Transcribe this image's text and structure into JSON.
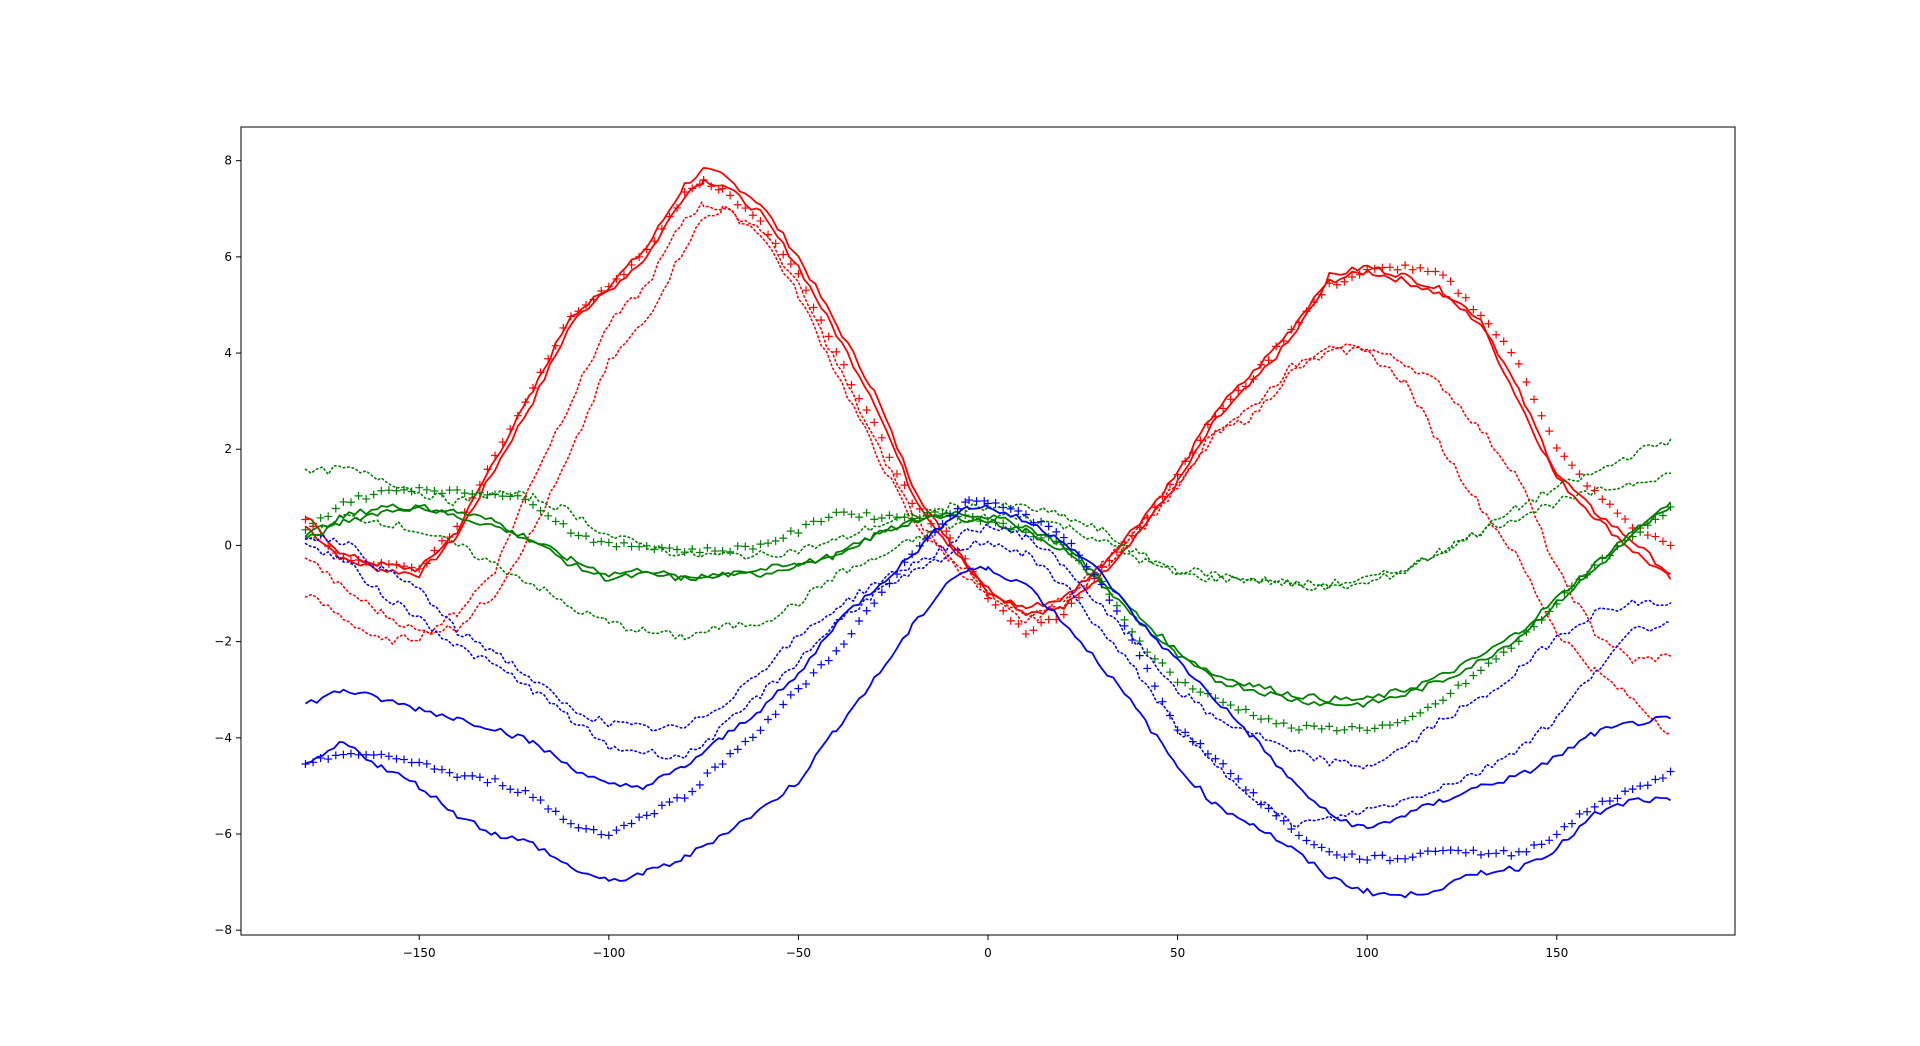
{
  "chart_data": {
    "type": "line",
    "title": "",
    "xlabel": "",
    "ylabel": "",
    "xlim": [
      -197,
      197
    ],
    "ylim": [
      -8.1,
      8.7
    ],
    "xticks": [
      -150,
      -100,
      -50,
      0,
      50,
      100,
      150
    ],
    "yticks": [
      -8,
      -6,
      -4,
      -2,
      0,
      2,
      4,
      6,
      8
    ],
    "xtick_labels": [
      "−150",
      "−100",
      "−50",
      "0",
      "50",
      "100",
      "150"
    ],
    "ytick_labels": [
      "−8",
      "−6",
      "−4",
      "−2",
      "0",
      "2",
      "4",
      "6",
      "8"
    ],
    "grid": false,
    "legend": "none",
    "colors": {
      "red": "#ff0000",
      "green": "#008000",
      "blue": "#0000ff"
    },
    "series": [
      {
        "color": "#ff0000",
        "style": "solid",
        "x": [
          -180,
          -170,
          -160,
          -150,
          -140,
          -130,
          -120,
          -110,
          -100,
          -90,
          -80,
          -75,
          -70,
          -60,
          -50,
          -40,
          -30,
          -20,
          -15,
          -10,
          0,
          10,
          20,
          30,
          40,
          50,
          60,
          70,
          80,
          90,
          100,
          110,
          120,
          130,
          140,
          150,
          160,
          170,
          180
        ],
        "y": [
          0.4,
          -0.3,
          -0.5,
          -0.6,
          0.2,
          1.6,
          3.0,
          4.6,
          5.4,
          6.2,
          7.5,
          7.8,
          7.7,
          7.1,
          6.0,
          4.6,
          3.2,
          1.3,
          0.6,
          0.1,
          -0.9,
          -1.4,
          -1.3,
          -0.6,
          0.3,
          1.3,
          2.6,
          3.4,
          4.3,
          5.5,
          5.7,
          5.5,
          5.2,
          4.6,
          3.0,
          1.4,
          0.6,
          -0.1,
          -0.7
        ]
      },
      {
        "color": "#ff0000",
        "style": "solid",
        "x": [
          -180,
          -170,
          -160,
          -150,
          -140,
          -130,
          -120,
          -110,
          -100,
          -90,
          -80,
          -75,
          -70,
          -60,
          -50,
          -40,
          -30,
          -20,
          -15,
          -10,
          0,
          10,
          20,
          30,
          40,
          50,
          60,
          70,
          80,
          90,
          100,
          110,
          120,
          130,
          140,
          150,
          160,
          170,
          180
        ],
        "y": [
          0.6,
          -0.2,
          -0.4,
          -0.5,
          0.3,
          1.8,
          3.2,
          4.8,
          5.3,
          6.0,
          7.3,
          7.6,
          7.5,
          6.9,
          5.8,
          4.4,
          3.0,
          1.1,
          0.5,
          0.0,
          -1.0,
          -1.3,
          -1.1,
          -0.4,
          0.5,
          1.5,
          2.8,
          3.6,
          4.5,
          5.6,
          5.8,
          5.6,
          5.3,
          4.7,
          3.2,
          1.5,
          0.7,
          0.1,
          -0.6
        ]
      },
      {
        "color": "#ff0000",
        "style": "plus",
        "x": [
          -180,
          -170,
          -160,
          -150,
          -140,
          -130,
          -120,
          -110,
          -100,
          -90,
          -80,
          -75,
          -70,
          -60,
          -50,
          -40,
          -30,
          -20,
          -15,
          -10,
          0,
          10,
          20,
          30,
          40,
          50,
          60,
          70,
          80,
          90,
          100,
          110,
          120,
          130,
          140,
          150,
          160,
          170,
          180
        ],
        "y": [
          0.5,
          -0.3,
          -0.4,
          -0.5,
          0.4,
          1.9,
          3.3,
          4.8,
          5.4,
          6.1,
          7.3,
          7.6,
          7.4,
          6.7,
          5.6,
          4.0,
          2.5,
          0.9,
          0.5,
          0.2,
          -1.1,
          -1.8,
          -1.4,
          -0.5,
          0.4,
          1.5,
          2.7,
          3.5,
          4.5,
          5.4,
          5.7,
          5.8,
          5.6,
          4.8,
          3.8,
          2.0,
          1.1,
          0.4,
          0.0
        ]
      },
      {
        "color": "#ff0000",
        "style": "dotted",
        "x": [
          -180,
          -170,
          -160,
          -150,
          -140,
          -130,
          -120,
          -110,
          -100,
          -90,
          -80,
          -75,
          -70,
          -60,
          -50,
          -40,
          -30,
          -20,
          -15,
          -10,
          0,
          10,
          20,
          30,
          40,
          50,
          60,
          70,
          80,
          90,
          100,
          110,
          120,
          130,
          140,
          150,
          160,
          170,
          180
        ],
        "y": [
          -1.0,
          -1.5,
          -2.0,
          -1.9,
          -1.4,
          -0.5,
          1.4,
          3.0,
          4.6,
          5.4,
          6.8,
          7.1,
          7.0,
          6.5,
          5.2,
          3.6,
          2.0,
          0.5,
          0.1,
          -0.3,
          -1.1,
          -1.6,
          -1.2,
          -0.5,
          0.3,
          1.2,
          2.3,
          2.7,
          3.6,
          4.0,
          4.1,
          3.8,
          3.3,
          2.4,
          1.4,
          -0.5,
          -1.8,
          -2.4,
          -2.3
        ]
      },
      {
        "color": "#ff0000",
        "style": "dotted",
        "x": [
          -180,
          -170,
          -160,
          -150,
          -140,
          -130,
          -120,
          -110,
          -100,
          -90,
          -80,
          -75,
          -70,
          -60,
          -50,
          -40,
          -30,
          -20,
          -15,
          -10,
          0,
          10,
          20,
          30,
          40,
          50,
          60,
          70,
          80,
          90,
          100,
          110,
          120,
          130,
          140,
          150,
          160,
          170,
          180
        ],
        "y": [
          -0.2,
          -0.9,
          -1.4,
          -1.8,
          -1.7,
          -1.0,
          0.3,
          1.9,
          3.8,
          4.7,
          6.2,
          6.8,
          7.0,
          6.6,
          5.4,
          3.8,
          2.2,
          0.7,
          0.2,
          -0.2,
          -1.0,
          -1.5,
          -1.1,
          -0.4,
          0.4,
          1.3,
          2.4,
          2.9,
          3.7,
          4.2,
          4.0,
          3.4,
          2.0,
          0.8,
          -0.3,
          -1.8,
          -2.6,
          -3.2,
          -3.9
        ]
      },
      {
        "color": "#008000",
        "style": "solid",
        "x": [
          -180,
          -170,
          -160,
          -150,
          -140,
          -130,
          -120,
          -110,
          -100,
          -90,
          -80,
          -70,
          -60,
          -50,
          -40,
          -30,
          -20,
          -10,
          0,
          10,
          20,
          30,
          40,
          50,
          60,
          70,
          80,
          90,
          100,
          110,
          120,
          130,
          140,
          150,
          160,
          170,
          180
        ],
        "y": [
          0.2,
          0.6,
          0.8,
          0.8,
          0.6,
          0.4,
          0.1,
          -0.3,
          -0.6,
          -0.5,
          -0.7,
          -0.6,
          -0.5,
          -0.4,
          -0.2,
          0.2,
          0.5,
          0.7,
          0.6,
          0.4,
          0.0,
          -0.7,
          -1.5,
          -2.2,
          -2.7,
          -2.9,
          -3.1,
          -3.2,
          -3.2,
          -3.0,
          -2.7,
          -2.3,
          -1.8,
          -1.1,
          -0.4,
          0.3,
          0.8
        ]
      },
      {
        "color": "#008000",
        "style": "solid",
        "x": [
          -180,
          -170,
          -160,
          -150,
          -140,
          -130,
          -120,
          -110,
          -100,
          -90,
          -80,
          -70,
          -60,
          -50,
          -40,
          -30,
          -20,
          -10,
          0,
          10,
          20,
          30,
          40,
          50,
          60,
          70,
          80,
          90,
          100,
          110,
          120,
          130,
          140,
          150,
          160,
          170,
          180
        ],
        "y": [
          0.1,
          0.5,
          0.7,
          0.8,
          0.7,
          0.5,
          0.1,
          -0.4,
          -0.7,
          -0.6,
          -0.7,
          -0.6,
          -0.6,
          -0.4,
          -0.2,
          0.2,
          0.5,
          0.6,
          0.5,
          0.3,
          -0.1,
          -0.8,
          -1.6,
          -2.3,
          -2.8,
          -3.0,
          -3.2,
          -3.3,
          -3.3,
          -3.1,
          -2.8,
          -2.4,
          -1.9,
          -1.2,
          -0.5,
          0.2,
          0.9
        ]
      },
      {
        "color": "#008000",
        "style": "plus",
        "x": [
          -180,
          -170,
          -160,
          -150,
          -140,
          -130,
          -120,
          -110,
          -100,
          -90,
          -80,
          -70,
          -60,
          -50,
          -40,
          -30,
          -20,
          -10,
          0,
          10,
          20,
          30,
          40,
          50,
          60,
          70,
          80,
          90,
          100,
          110,
          120,
          130,
          140,
          150,
          160,
          170,
          180
        ],
        "y": [
          0.3,
          0.9,
          1.1,
          1.2,
          1.1,
          1.1,
          0.9,
          0.3,
          0.0,
          0.0,
          -0.1,
          -0.1,
          0.0,
          0.3,
          0.7,
          0.6,
          0.6,
          0.7,
          0.5,
          0.3,
          0.0,
          -0.8,
          -2.0,
          -2.8,
          -3.2,
          -3.5,
          -3.8,
          -3.8,
          -3.8,
          -3.7,
          -3.2,
          -2.6,
          -2.0,
          -1.2,
          -0.4,
          0.2,
          0.8
        ]
      },
      {
        "color": "#008000",
        "style": "dotted",
        "x": [
          -180,
          -170,
          -160,
          -150,
          -140,
          -130,
          -120,
          -110,
          -100,
          -90,
          -80,
          -70,
          -60,
          -50,
          -40,
          -30,
          -20,
          -10,
          0,
          10,
          20,
          30,
          40,
          50,
          60,
          70,
          80,
          90,
          100,
          110,
          120,
          130,
          140,
          150,
          160,
          170,
          180
        ],
        "y": [
          1.5,
          1.6,
          1.4,
          1.1,
          0.9,
          1.1,
          1.0,
          0.7,
          0.2,
          0.0,
          -0.2,
          -0.2,
          -0.2,
          -0.1,
          0.1,
          0.4,
          0.6,
          0.8,
          0.8,
          0.8,
          0.6,
          0.3,
          -0.2,
          -0.5,
          -0.6,
          -0.7,
          -0.8,
          -0.9,
          -0.8,
          -0.5,
          -0.1,
          0.3,
          0.8,
          1.2,
          1.5,
          1.9,
          2.2
        ]
      },
      {
        "color": "#008000",
        "style": "dotted",
        "x": [
          -180,
          -170,
          -160,
          -150,
          -140,
          -130,
          -120,
          -110,
          -100,
          -90,
          -80,
          -70,
          -60,
          -50,
          -40,
          -30,
          -20,
          -10,
          0,
          10,
          20,
          30,
          40,
          50,
          60,
          70,
          80,
          90,
          100,
          110,
          120,
          130,
          140,
          150,
          160,
          170,
          180
        ],
        "y": [
          0.1,
          0.6,
          0.5,
          0.3,
          0.0,
          -0.4,
          -0.8,
          -1.3,
          -1.6,
          -1.8,
          -1.9,
          -1.7,
          -1.6,
          -1.2,
          -0.6,
          -0.3,
          0.1,
          0.4,
          0.6,
          0.6,
          0.4,
          0.1,
          -0.3,
          -0.6,
          -0.7,
          -0.7,
          -0.8,
          -0.8,
          -0.7,
          -0.5,
          -0.1,
          0.3,
          0.6,
          0.9,
          1.1,
          1.3,
          1.5
        ]
      },
      {
        "color": "#0000ff",
        "style": "solid",
        "x": [
          -180,
          -170,
          -160,
          -150,
          -140,
          -130,
          -120,
          -110,
          -100,
          -90,
          -80,
          -70,
          -60,
          -50,
          -40,
          -30,
          -20,
          -10,
          -5,
          0,
          10,
          20,
          30,
          40,
          50,
          60,
          70,
          80,
          90,
          100,
          110,
          120,
          130,
          140,
          150,
          160,
          170,
          180
        ],
        "y": [
          -3.3,
          -3.0,
          -3.2,
          -3.4,
          -3.6,
          -3.8,
          -4.1,
          -4.6,
          -5.0,
          -5.0,
          -4.6,
          -4.0,
          -3.4,
          -2.7,
          -1.6,
          -0.9,
          -0.2,
          0.6,
          0.8,
          0.8,
          0.5,
          0.1,
          -0.6,
          -1.6,
          -2.4,
          -3.2,
          -4.0,
          -4.9,
          -5.6,
          -5.9,
          -5.6,
          -5.3,
          -5.0,
          -4.8,
          -4.4,
          -3.9,
          -3.7,
          -3.6
        ]
      },
      {
        "color": "#0000ff",
        "style": "solid",
        "x": [
          -180,
          -170,
          -160,
          -150,
          -140,
          -130,
          -120,
          -110,
          -100,
          -90,
          -80,
          -70,
          -60,
          -50,
          -40,
          -30,
          -20,
          -10,
          -5,
          0,
          10,
          20,
          30,
          40,
          50,
          60,
          70,
          80,
          90,
          100,
          110,
          120,
          130,
          140,
          150,
          160,
          170,
          180
        ],
        "y": [
          -4.6,
          -4.1,
          -4.6,
          -5.0,
          -5.6,
          -6.0,
          -6.2,
          -6.7,
          -7.0,
          -6.8,
          -6.5,
          -6.0,
          -5.5,
          -4.9,
          -3.8,
          -2.8,
          -1.7,
          -0.7,
          -0.5,
          -0.5,
          -0.8,
          -1.6,
          -2.5,
          -3.5,
          -4.6,
          -5.4,
          -5.8,
          -6.3,
          -6.9,
          -7.2,
          -7.3,
          -7.1,
          -6.8,
          -6.7,
          -6.3,
          -5.6,
          -5.3,
          -5.3
        ]
      },
      {
        "color": "#0000ff",
        "style": "plus",
        "x": [
          -180,
          -170,
          -160,
          -150,
          -140,
          -130,
          -120,
          -110,
          -100,
          -90,
          -80,
          -70,
          -60,
          -50,
          -40,
          -30,
          -20,
          -10,
          -5,
          0,
          10,
          20,
          30,
          40,
          50,
          60,
          70,
          80,
          90,
          100,
          110,
          120,
          130,
          140,
          150,
          160,
          170,
          180
        ],
        "y": [
          -4.6,
          -4.3,
          -4.4,
          -4.5,
          -4.8,
          -4.9,
          -5.2,
          -5.8,
          -6.0,
          -5.6,
          -5.2,
          -4.5,
          -3.8,
          -3.0,
          -2.2,
          -1.2,
          -0.2,
          0.6,
          1.0,
          0.9,
          0.6,
          0.2,
          -0.8,
          -2.3,
          -3.8,
          -4.4,
          -5.2,
          -5.9,
          -6.4,
          -6.5,
          -6.5,
          -6.3,
          -6.4,
          -6.4,
          -6.0,
          -5.4,
          -5.1,
          -4.7
        ]
      },
      {
        "color": "#0000ff",
        "style": "dotted",
        "x": [
          -180,
          -170,
          -160,
          -150,
          -140,
          -130,
          -120,
          -110,
          -100,
          -90,
          -80,
          -70,
          -60,
          -50,
          -40,
          -30,
          -20,
          -10,
          -5,
          0,
          10,
          20,
          30,
          40,
          50,
          60,
          70,
          80,
          90,
          100,
          110,
          120,
          130,
          140,
          150,
          160,
          170,
          180
        ],
        "y": [
          0.0,
          -0.3,
          -1.0,
          -1.5,
          -2.1,
          -2.5,
          -3.0,
          -3.6,
          -4.2,
          -4.3,
          -4.4,
          -3.8,
          -3.1,
          -2.4,
          -1.6,
          -1.0,
          -0.6,
          -0.2,
          0.0,
          0.1,
          -0.2,
          -0.8,
          -1.8,
          -2.7,
          -3.8,
          -4.6,
          -5.2,
          -5.8,
          -5.7,
          -5.5,
          -5.3,
          -5.0,
          -4.7,
          -4.2,
          -3.6,
          -2.6,
          -1.8,
          -1.6
        ]
      },
      {
        "color": "#0000ff",
        "style": "dotted",
        "x": [
          -180,
          -170,
          -160,
          -150,
          -140,
          -130,
          -120,
          -110,
          -100,
          -90,
          -80,
          -70,
          -60,
          -50,
          -40,
          -30,
          -20,
          -10,
          -5,
          0,
          10,
          20,
          30,
          40,
          50,
          60,
          70,
          80,
          90,
          100,
          110,
          120,
          130,
          140,
          150,
          160,
          170,
          180
        ],
        "y": [
          0.2,
          0.1,
          -0.5,
          -0.9,
          -1.8,
          -2.2,
          -2.8,
          -3.4,
          -3.7,
          -3.8,
          -3.8,
          -3.3,
          -2.6,
          -1.9,
          -1.3,
          -0.8,
          -0.4,
          0.0,
          0.3,
          0.4,
          0.2,
          -0.4,
          -1.3,
          -2.1,
          -3.0,
          -3.6,
          -3.9,
          -4.3,
          -4.5,
          -4.6,
          -4.2,
          -3.6,
          -3.2,
          -2.6,
          -1.9,
          -1.4,
          -1.2,
          -1.2
        ]
      }
    ]
  }
}
